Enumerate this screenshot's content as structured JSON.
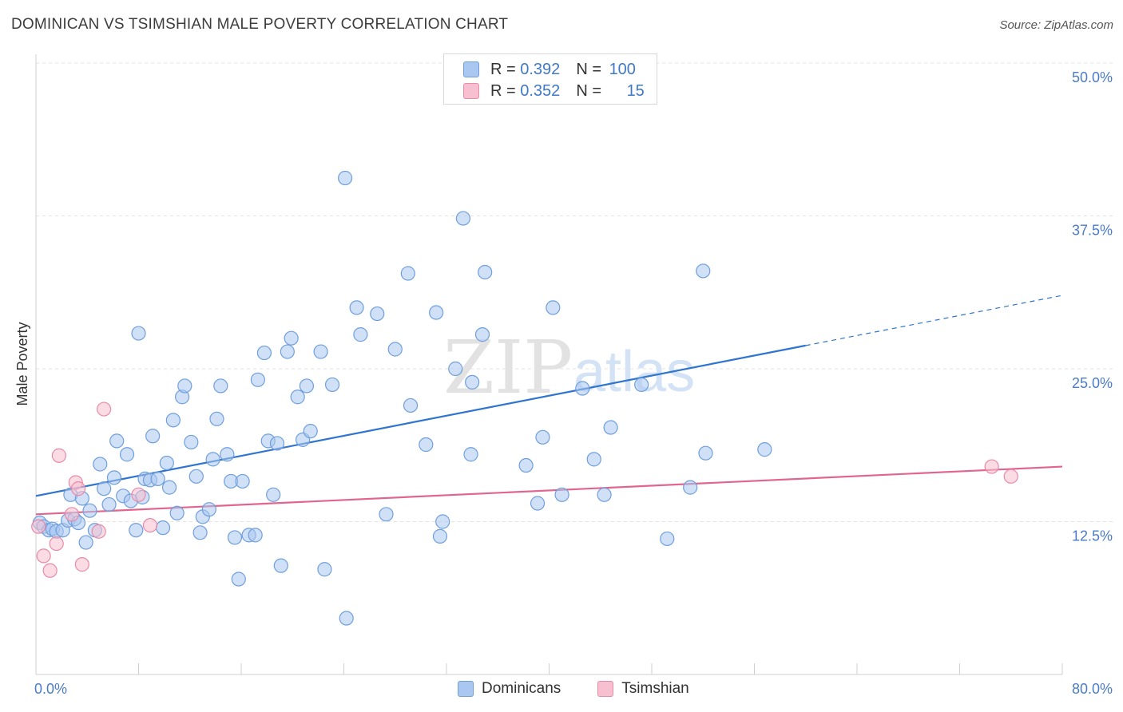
{
  "title": "DOMINICAN VS TSIMSHIAN MALE POVERTY CORRELATION CHART",
  "source": "Source: ZipAtlas.com",
  "watermark": {
    "zip": "ZIP",
    "atlas": "atlas"
  },
  "legend_top": {
    "rows": [
      {
        "r_label": "R = ",
        "r_value": "0.392",
        "n_label": "N = ",
        "n_value": "100",
        "color": "#a9c7f0",
        "border": "#6f9fdc"
      },
      {
        "r_label": "R = ",
        "r_value": "0.352",
        "n_label": "N = ",
        "n_value": "15",
        "color": "#f7c0d0",
        "border": "#e98aa7"
      }
    ]
  },
  "legend_bottom": [
    {
      "label": "Dominicans",
      "color": "#a9c7f0",
      "border": "#6f9fdc"
    },
    {
      "label": "Tsimshian",
      "color": "#f7c0d0",
      "border": "#e98aa7"
    }
  ],
  "chart_data": {
    "type": "scatter",
    "title": "DOMINICAN VS TSIMSHIAN MALE POVERTY CORRELATION CHART",
    "xlabel": "",
    "ylabel": "Male Poverty",
    "xlim": [
      0,
      80
    ],
    "ylim": [
      0,
      50
    ],
    "x_tick_labels": [
      {
        "value": 0,
        "label": "0.0%"
      },
      {
        "value": 80,
        "label": "80.0%"
      }
    ],
    "y_tick_labels": [
      {
        "value": 12.5,
        "label": "12.5%"
      },
      {
        "value": 25,
        "label": "25.0%"
      },
      {
        "value": 37.5,
        "label": "37.5%"
      },
      {
        "value": 50,
        "label": "50.0%"
      }
    ],
    "grid": true,
    "legend_position": "top-center",
    "series": [
      {
        "name": "Dominicans",
        "color": "#6f9fdc",
        "fill": "#a9c7f0",
        "trend": {
          "x0": 0,
          "y0": 14.6,
          "x1": 60,
          "y1": 26.9,
          "dashed_to_x": 80,
          "dashed_to_y": 31.0,
          "color": "#2f74d0"
        },
        "points": [
          [
            0.3,
            12.4
          ],
          [
            0.6,
            12.1
          ],
          [
            1.0,
            11.8
          ],
          [
            1.3,
            11.9
          ],
          [
            1.6,
            11.7
          ],
          [
            2.1,
            11.8
          ],
          [
            2.5,
            12.6
          ],
          [
            2.7,
            14.7
          ],
          [
            3.0,
            12.7
          ],
          [
            3.3,
            12.4
          ],
          [
            3.6,
            14.4
          ],
          [
            3.9,
            10.8
          ],
          [
            4.2,
            13.4
          ],
          [
            4.6,
            11.8
          ],
          [
            5.0,
            17.2
          ],
          [
            5.3,
            15.2
          ],
          [
            5.7,
            13.9
          ],
          [
            6.1,
            16.1
          ],
          [
            6.3,
            19.1
          ],
          [
            6.8,
            14.6
          ],
          [
            7.1,
            18.0
          ],
          [
            7.4,
            14.2
          ],
          [
            7.8,
            11.8
          ],
          [
            8.0,
            27.9
          ],
          [
            8.3,
            14.5
          ],
          [
            8.5,
            16.0
          ],
          [
            8.9,
            15.9
          ],
          [
            9.1,
            19.5
          ],
          [
            9.5,
            16.0
          ],
          [
            9.9,
            12.0
          ],
          [
            10.2,
            17.3
          ],
          [
            10.4,
            15.3
          ],
          [
            10.7,
            20.8
          ],
          [
            11.0,
            13.2
          ],
          [
            11.4,
            22.7
          ],
          [
            11.6,
            23.6
          ],
          [
            12.1,
            19.0
          ],
          [
            12.5,
            16.2
          ],
          [
            12.8,
            11.6
          ],
          [
            13.0,
            12.9
          ],
          [
            13.5,
            13.5
          ],
          [
            13.8,
            17.6
          ],
          [
            14.1,
            20.9
          ],
          [
            14.4,
            23.6
          ],
          [
            14.9,
            18.0
          ],
          [
            15.2,
            15.8
          ],
          [
            15.5,
            11.2
          ],
          [
            15.8,
            7.8
          ],
          [
            16.1,
            15.8
          ],
          [
            16.6,
            11.4
          ],
          [
            17.1,
            11.4
          ],
          [
            17.3,
            24.1
          ],
          [
            17.8,
            26.3
          ],
          [
            18.1,
            19.1
          ],
          [
            18.5,
            14.7
          ],
          [
            18.8,
            18.9
          ],
          [
            19.1,
            8.9
          ],
          [
            19.6,
            26.4
          ],
          [
            19.9,
            27.5
          ],
          [
            20.4,
            22.7
          ],
          [
            20.8,
            19.2
          ],
          [
            21.1,
            23.6
          ],
          [
            21.4,
            19.9
          ],
          [
            22.2,
            26.4
          ],
          [
            22.5,
            8.6
          ],
          [
            23.1,
            23.7
          ],
          [
            24.2,
            4.6
          ],
          [
            24.1,
            40.6
          ],
          [
            25.0,
            30.0
          ],
          [
            25.3,
            27.8
          ],
          [
            26.6,
            29.5
          ],
          [
            27.3,
            13.1
          ],
          [
            28.0,
            26.6
          ],
          [
            29.0,
            32.8
          ],
          [
            29.2,
            22.0
          ],
          [
            30.4,
            18.8
          ],
          [
            31.2,
            29.6
          ],
          [
            31.5,
            11.3
          ],
          [
            31.7,
            12.5
          ],
          [
            32.7,
            25.0
          ],
          [
            33.3,
            37.3
          ],
          [
            33.9,
            18.0
          ],
          [
            34.0,
            23.9
          ],
          [
            34.8,
            27.8
          ],
          [
            35.0,
            32.9
          ],
          [
            38.2,
            17.1
          ],
          [
            39.1,
            14.0
          ],
          [
            39.5,
            19.4
          ],
          [
            40.3,
            30.0
          ],
          [
            41.0,
            14.7
          ],
          [
            42.6,
            23.4
          ],
          [
            43.5,
            17.6
          ],
          [
            44.3,
            14.7
          ],
          [
            44.8,
            20.2
          ],
          [
            47.2,
            23.7
          ],
          [
            49.2,
            11.1
          ],
          [
            51.0,
            15.3
          ],
          [
            52.0,
            33.0
          ],
          [
            52.2,
            18.1
          ],
          [
            56.8,
            18.4
          ]
        ]
      },
      {
        "name": "Tsimshian",
        "color": "#e98aa7",
        "fill": "#f7c0d0",
        "trend": {
          "x0": 0,
          "y0": 13.1,
          "x1": 80,
          "y1": 17.0,
          "color": "#e0668f"
        },
        "points": [
          [
            0.2,
            12.1
          ],
          [
            0.6,
            9.7
          ],
          [
            1.1,
            8.5
          ],
          [
            1.6,
            10.7
          ],
          [
            1.8,
            17.9
          ],
          [
            2.8,
            13.1
          ],
          [
            3.1,
            15.7
          ],
          [
            3.3,
            15.2
          ],
          [
            3.6,
            9.0
          ],
          [
            4.9,
            11.7
          ],
          [
            5.3,
            21.7
          ],
          [
            8.0,
            14.7
          ],
          [
            8.9,
            12.2
          ],
          [
            74.5,
            17.0
          ],
          [
            76.0,
            16.2
          ]
        ]
      }
    ]
  }
}
